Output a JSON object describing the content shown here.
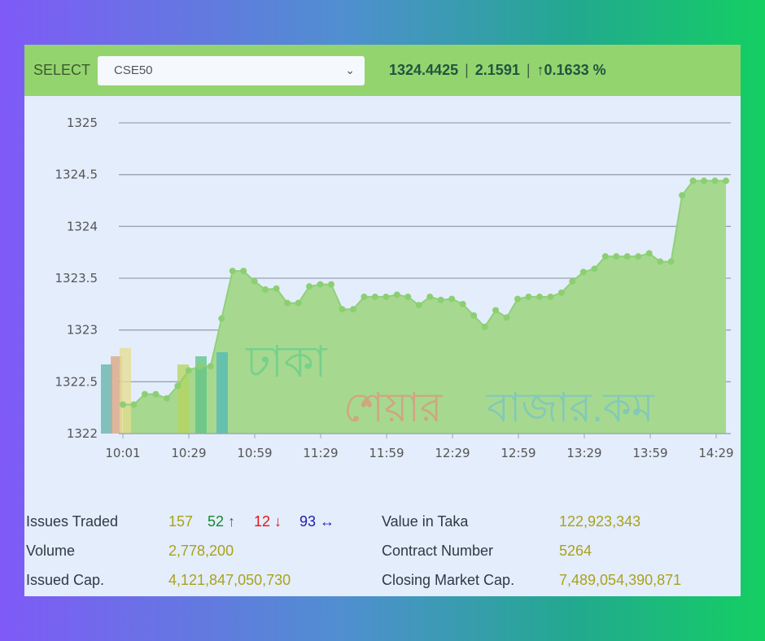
{
  "header": {
    "select_label": "SELECT",
    "selected_index": "CSE50",
    "index_value": "1324.4425",
    "change": "2.1591",
    "change_pct": "0.1633 %",
    "up_arrow": "↑"
  },
  "watermark": {
    "line1": "ঢাকা",
    "line2a": "শেয়ার",
    "line2b": "বাজার",
    "suffix": ".কম"
  },
  "chart_data": {
    "type": "area",
    "ylim": [
      1322,
      1325
    ],
    "yticks": [
      "1322",
      "1322.5",
      "1323",
      "1323.5",
      "1324",
      "1324.5",
      "1325"
    ],
    "xticks": [
      "10:01",
      "10:29",
      "10:59",
      "11:29",
      "11:59",
      "12:29",
      "12:59",
      "13:29",
      "13:59",
      "14:29"
    ],
    "grid": true,
    "colors": {
      "fill": "#a6d98f",
      "line": "#8fd07a",
      "point": "#8ccf72"
    },
    "values": [
      1322.28,
      1322.28,
      1322.38,
      1322.38,
      1322.34,
      1322.46,
      1322.61,
      1322.65,
      1322.65,
      1323.11,
      1323.57,
      1323.57,
      1323.47,
      1323.39,
      1323.4,
      1323.26,
      1323.26,
      1323.42,
      1323.44,
      1323.44,
      1323.2,
      1323.2,
      1323.32,
      1323.32,
      1323.32,
      1323.34,
      1323.32,
      1323.24,
      1323.32,
      1323.29,
      1323.3,
      1323.25,
      1323.14,
      1323.03,
      1323.19,
      1323.12,
      1323.3,
      1323.32,
      1323.32,
      1323.32,
      1323.36,
      1323.47,
      1323.56,
      1323.59,
      1323.71,
      1323.71,
      1323.71,
      1323.71,
      1323.74,
      1323.66,
      1323.66,
      1324.3,
      1324.44,
      1324.44,
      1324.44,
      1324.44
    ]
  },
  "info": {
    "issues_traded_label": "Issues Traded",
    "issues_total": "157",
    "issues_up": "52",
    "issues_down": "12",
    "issues_unchanged": "93",
    "up_arrow": "↑",
    "down_arrow": "↓",
    "flat_arrow": "↔",
    "volume_label": "Volume",
    "volume": "2,778,200",
    "issued_cap_label": "Issued Cap.",
    "issued_cap": "4,121,847,050,730",
    "value_label": "Value in Taka",
    "value": "122,923,343",
    "contract_label": "Contract Number",
    "contract": "5264",
    "closing_cap_label": "Closing Market Cap.",
    "closing_cap": "7,489,054,390,871",
    "colors": {
      "up": "#138a2e",
      "down": "#e0141e",
      "flat": "#2020b0",
      "value": "#a9a21c"
    }
  }
}
